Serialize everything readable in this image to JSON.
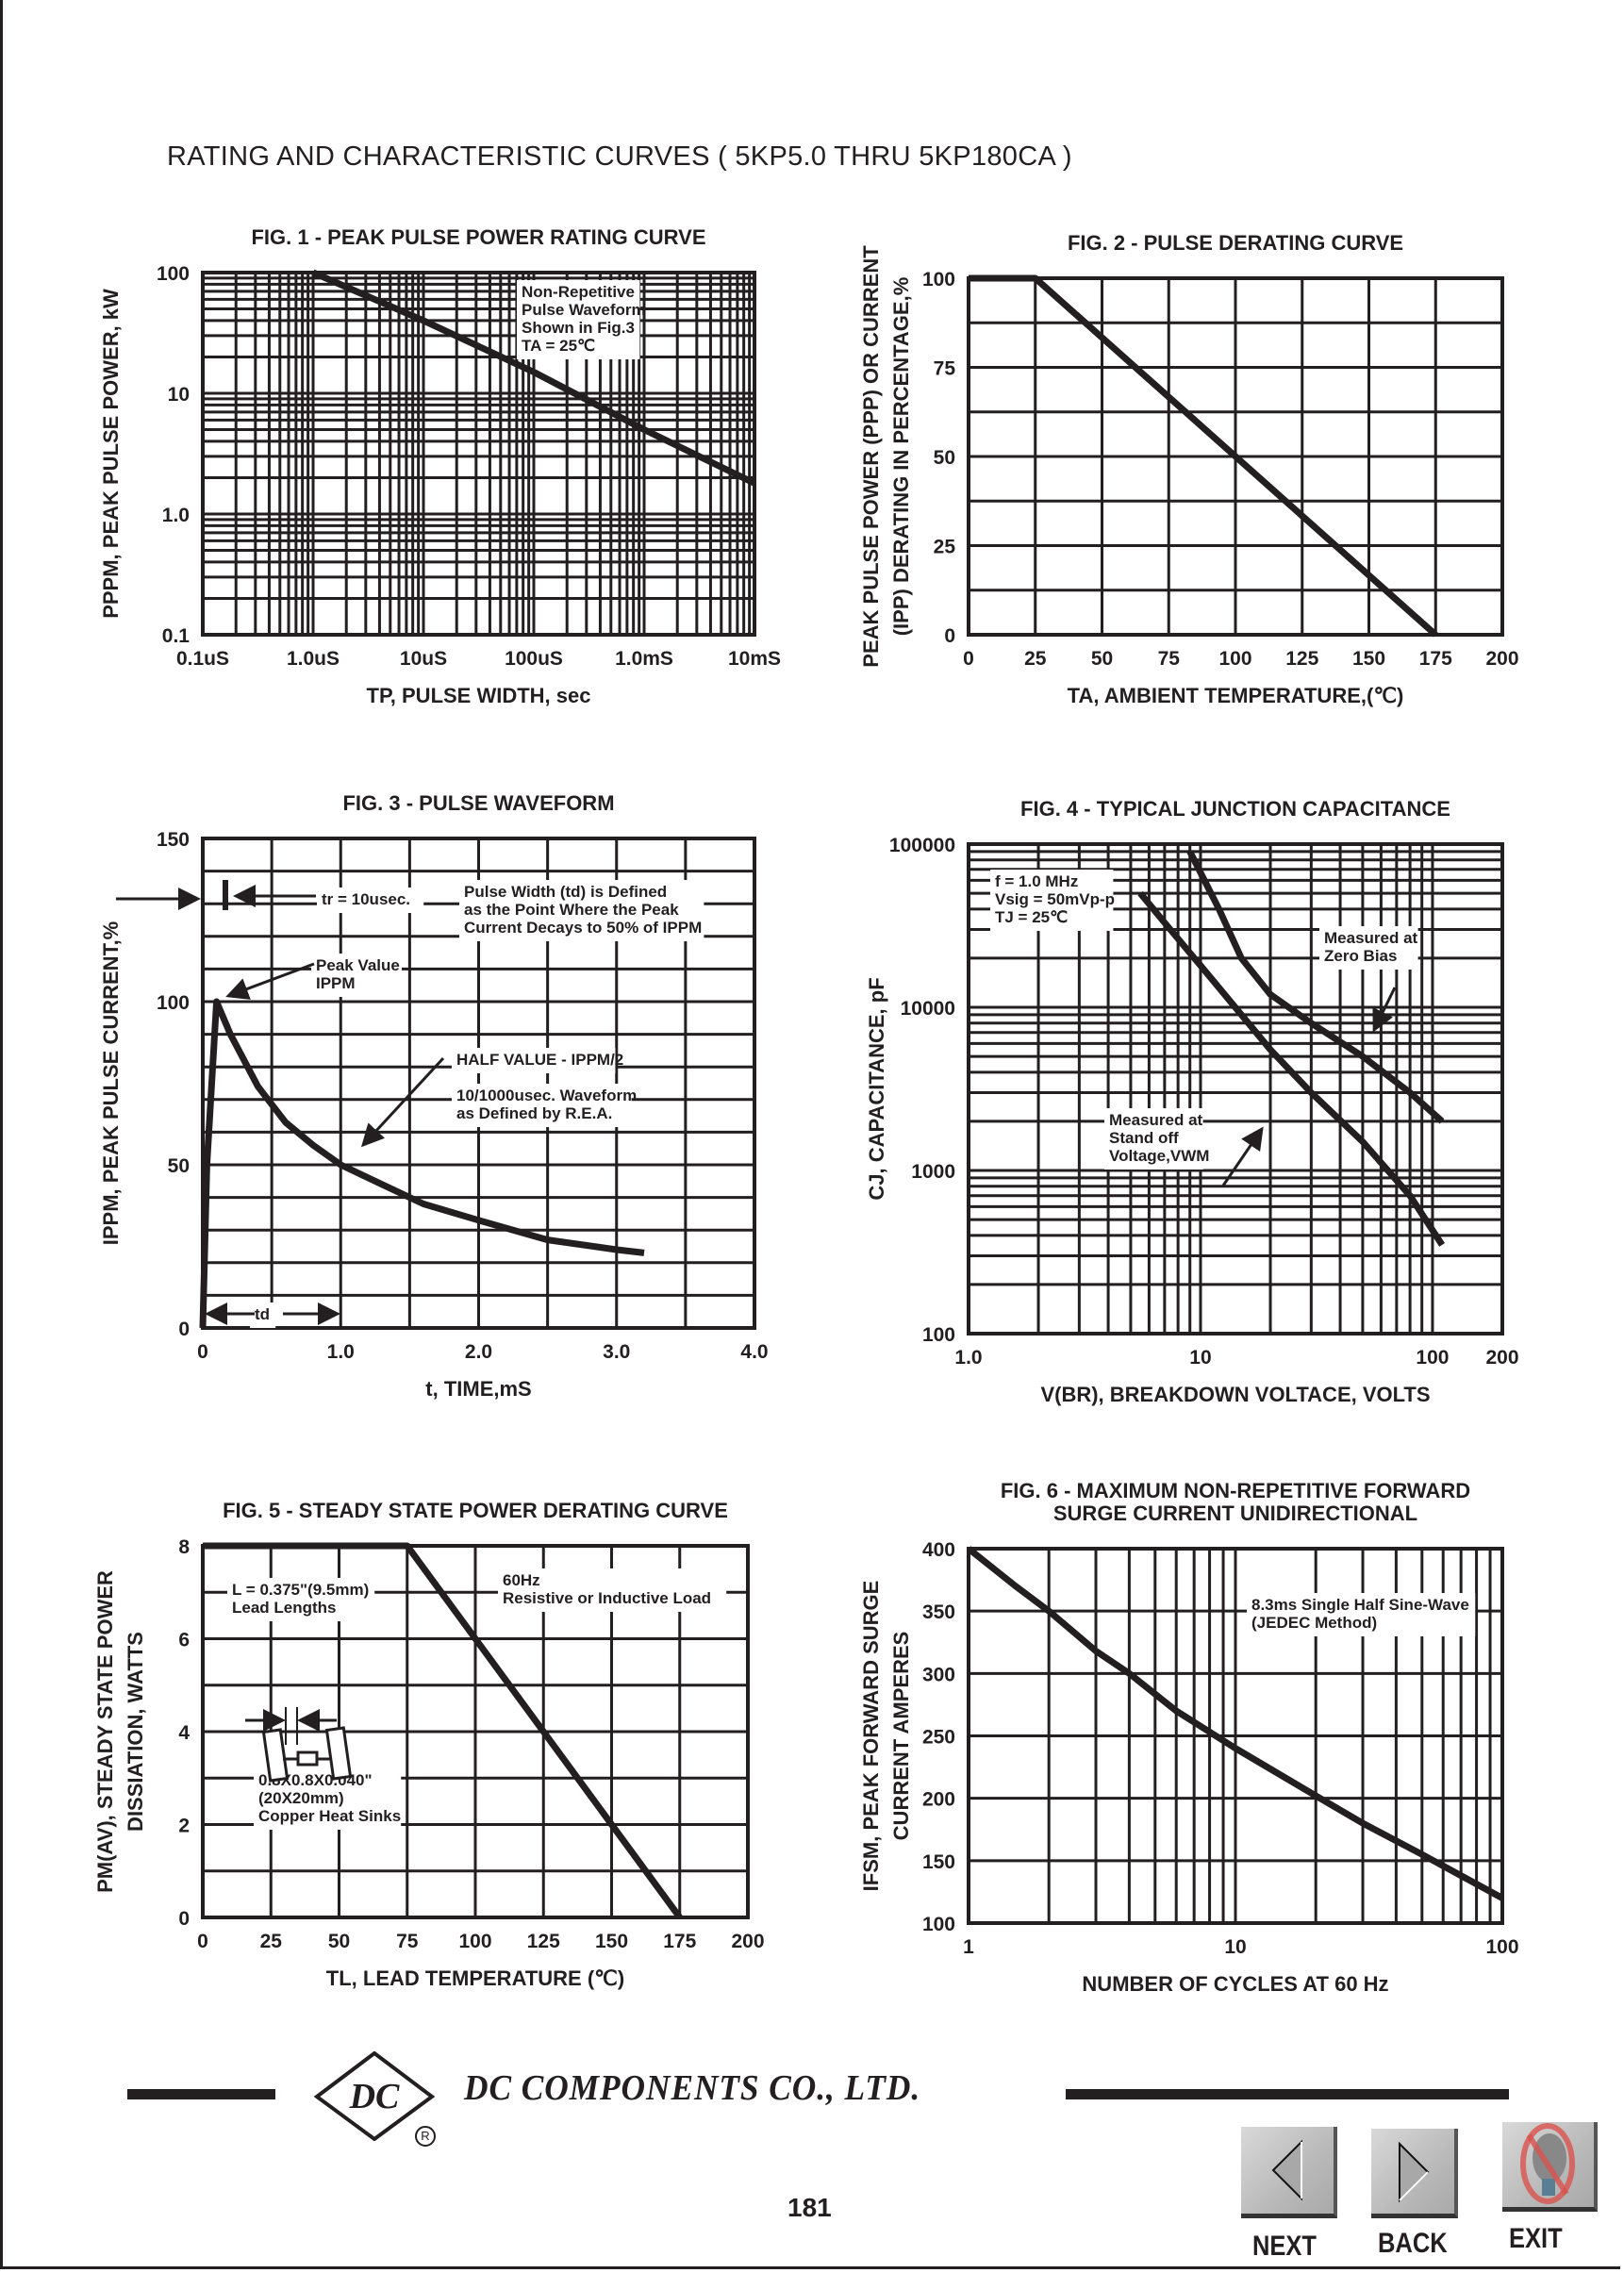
{
  "page_title": "RATING AND CHARACTERISTIC CURVES ( 5KP5.0 THRU 5KP180CA )",
  "footer": {
    "company": "DC COMPONENTS CO., LTD.",
    "logo_text": "DC",
    "registered_mark": "R",
    "page_number": "181",
    "nav": {
      "next": "NEXT",
      "back": "BACK",
      "exit": "EXIT"
    },
    "icons": {
      "next": "triangle-left-icon",
      "back": "triangle-right-icon",
      "exit": "no-entry-bulb-icon"
    },
    "colors": {
      "exit_sign": "#d9534f",
      "button": "#c0c0c0"
    }
  },
  "chart_data": [
    {
      "type": "line",
      "title": [
        "FIG. 1 - PEAK PULSE POWER RATING CURVE"
      ],
      "xlabel": "TP, PULSE WIDTH, sec",
      "ylabel": [
        "PPPM, PEAK PULSE POWER, kW"
      ],
      "xscale": "log",
      "yscale": "log",
      "xlim": [
        1e-07,
        0.01
      ],
      "ylim": [
        0.1,
        100
      ],
      "xticks": [
        {
          "v": 1e-07,
          "label": "0.1uS"
        },
        {
          "v": 1e-06,
          "label": "1.0uS"
        },
        {
          "v": 1e-05,
          "label": "10uS"
        },
        {
          "v": 0.0001,
          "label": "100uS"
        },
        {
          "v": 0.001,
          "label": "1.0mS"
        },
        {
          "v": 0.01,
          "label": "10mS"
        }
      ],
      "yticks": [
        {
          "v": 100,
          "label": "100"
        },
        {
          "v": 10,
          "label": "10"
        },
        {
          "v": 1,
          "label": "1.0"
        },
        {
          "v": 0.1,
          "label": "0.1"
        }
      ],
      "grid": true,
      "series": [
        {
          "points": [
            [
              1e-06,
              100
            ],
            [
              1e-05,
              40
            ],
            [
              0.0001,
              15
            ],
            [
              0.001,
              5
            ],
            [
              0.01,
              1.8
            ]
          ]
        }
      ],
      "annotations": [
        {
          "lines": [
            "Non-Repetitive",
            "Pulse Waveform",
            "Shown in Fig.3",
            "TA = 25℃"
          ]
        }
      ]
    },
    {
      "type": "line",
      "title": [
        "FIG. 2 - PULSE DERATING CURVE"
      ],
      "xlabel": "TA, AMBIENT TEMPERATURE,(℃)",
      "ylabel": [
        "PEAK PULSE POWER (PPP) OR CURRENT",
        "(IPP) DERATING IN PERCENTAGE,%"
      ],
      "xscale": "linear",
      "yscale": "linear",
      "xlim": [
        0,
        200
      ],
      "ylim": [
        0,
        100
      ],
      "xgrid_step": 25,
      "ygrid_step": 12.5,
      "xticks": [
        {
          "v": 0,
          "label": "0"
        },
        {
          "v": 25,
          "label": "25"
        },
        {
          "v": 50,
          "label": "50"
        },
        {
          "v": 75,
          "label": "75"
        },
        {
          "v": 100,
          "label": "100"
        },
        {
          "v": 125,
          "label": "125"
        },
        {
          "v": 150,
          "label": "150"
        },
        {
          "v": 175,
          "label": "175"
        },
        {
          "v": 200,
          "label": "200"
        }
      ],
      "yticks": [
        {
          "v": 0,
          "label": "0"
        },
        {
          "v": 25,
          "label": "25"
        },
        {
          "v": 50,
          "label": "50"
        },
        {
          "v": 75,
          "label": "75"
        },
        {
          "v": 100,
          "label": "100"
        }
      ],
      "grid": true,
      "series": [
        {
          "points": [
            [
              0,
              100
            ],
            [
              25,
              100
            ],
            [
              175,
              0
            ]
          ]
        }
      ],
      "annotations": []
    },
    {
      "type": "line",
      "title": [
        "FIG. 3 - PULSE WAVEFORM"
      ],
      "xlabel": "t, TIME,mS",
      "ylabel": [
        "IPPM, PEAK PULSE CURRENT,%"
      ],
      "xscale": "linear",
      "yscale": "linear",
      "xlim": [
        0,
        4
      ],
      "ylim": [
        0,
        150
      ],
      "xgrid_step": 0.5,
      "ygrid_step": 10,
      "xticks": [
        {
          "v": 0,
          "label": "0"
        },
        {
          "v": 1,
          "label": "1.0"
        },
        {
          "v": 2,
          "label": "2.0"
        },
        {
          "v": 3,
          "label": "3.0"
        },
        {
          "v": 4,
          "label": "4.0"
        }
      ],
      "yticks": [
        {
          "v": 0,
          "label": "0"
        },
        {
          "v": 50,
          "label": "50"
        },
        {
          "v": 100,
          "label": "100"
        },
        {
          "v": 150,
          "label": "150"
        }
      ],
      "grid": true,
      "series": [
        {
          "points": [
            [
              0,
              0
            ],
            [
              0.03,
              50
            ],
            [
              0.1,
              100
            ],
            [
              0.2,
              90
            ],
            [
              0.4,
              74
            ],
            [
              0.6,
              63
            ],
            [
              0.8,
              56
            ],
            [
              1.0,
              50
            ],
            [
              1.3,
              44
            ],
            [
              1.6,
              38
            ],
            [
              2.0,
              33
            ],
            [
              2.5,
              27
            ],
            [
              3.0,
              24
            ],
            [
              3.2,
              23
            ]
          ]
        }
      ],
      "annotations": [
        {
          "lines": [
            "tr = 10usec."
          ]
        },
        {
          "lines": [
            "Pulse Width (td) is Defined",
            "as the Point Where the Peak",
            "Current Decays to 50% of IPPM"
          ]
        },
        {
          "lines": [
            "Peak Value",
            "IPPM"
          ]
        },
        {
          "lines": [
            "HALF VALUE - IPPM/2"
          ]
        },
        {
          "lines": [
            "10/1000usec. Waveform",
            "as Defined by R.E.A."
          ]
        },
        {
          "lines": [
            "td"
          ]
        }
      ]
    },
    {
      "type": "line",
      "title": [
        "FIG. 4 - TYPICAL JUNCTION CAPACITANCE"
      ],
      "xlabel": "V(BR), BREAKDOWN VOLTACE, VOLTS",
      "ylabel": [
        "CJ, CAPACITANCE, pF"
      ],
      "xscale": "log",
      "yscale": "log",
      "xlim": [
        1,
        200
      ],
      "ylim": [
        100,
        100000
      ],
      "xticks": [
        {
          "v": 1,
          "label": "1.0"
        },
        {
          "v": 10,
          "label": "10"
        },
        {
          "v": 100,
          "label": "100"
        },
        {
          "v": 200,
          "label": "200"
        }
      ],
      "yticks": [
        {
          "v": 100000,
          "label": "100000"
        },
        {
          "v": 10000,
          "label": "10000"
        },
        {
          "v": 1000,
          "label": "1000"
        },
        {
          "v": 100,
          "label": "100"
        }
      ],
      "grid": true,
      "series": [
        {
          "points": [
            [
              9,
              90000
            ],
            [
              12,
              40000
            ],
            [
              15,
              20000
            ],
            [
              20,
              12000
            ],
            [
              30,
              8000
            ],
            [
              50,
              5000
            ],
            [
              80,
              3000
            ],
            [
              110,
              2000
            ]
          ]
        },
        {
          "points": [
            [
              5.5,
              50000
            ],
            [
              7,
              33000
            ],
            [
              10,
              18000
            ],
            [
              15,
              9000
            ],
            [
              20,
              5500
            ],
            [
              30,
              3000
            ],
            [
              50,
              1500
            ],
            [
              80,
              700
            ],
            [
              110,
              350
            ]
          ]
        }
      ],
      "annotations": [
        {
          "lines": [
            "f = 1.0 MHz",
            "Vsig = 50mVp-p",
            "TJ = 25℃"
          ]
        },
        {
          "lines": [
            "Measured at",
            "Zero Bias"
          ]
        },
        {
          "lines": [
            "Measured at",
            "Stand off",
            "Voltage,VWM"
          ]
        }
      ]
    },
    {
      "type": "line",
      "title": [
        "FIG. 5 - STEADY STATE POWER DERATING CURVE"
      ],
      "xlabel": "TL, LEAD TEMPERATURE (℃)",
      "ylabel": [
        "PM(AV), STEADY STATE POWER",
        "DISSIATION, WATTS"
      ],
      "xscale": "linear",
      "yscale": "linear",
      "xlim": [
        0,
        200
      ],
      "ylim": [
        0,
        8
      ],
      "xgrid_step": 25,
      "ygrid_step": 1,
      "xticks": [
        {
          "v": 0,
          "label": "0"
        },
        {
          "v": 25,
          "label": "25"
        },
        {
          "v": 50,
          "label": "50"
        },
        {
          "v": 75,
          "label": "75"
        },
        {
          "v": 100,
          "label": "100"
        },
        {
          "v": 125,
          "label": "125"
        },
        {
          "v": 150,
          "label": "150"
        },
        {
          "v": 175,
          "label": "175"
        },
        {
          "v": 200,
          "label": "200"
        }
      ],
      "yticks": [
        {
          "v": 0,
          "label": "0"
        },
        {
          "v": 2,
          "label": "2"
        },
        {
          "v": 4,
          "label": "4"
        },
        {
          "v": 6,
          "label": "6"
        },
        {
          "v": 8,
          "label": "8"
        }
      ],
      "grid": true,
      "series": [
        {
          "points": [
            [
              0,
              8
            ],
            [
              75,
              8
            ],
            [
              175,
              0
            ]
          ]
        }
      ],
      "annotations": [
        {
          "lines": [
            "L = 0.375\"(9.5mm)",
            "Lead Lengths"
          ]
        },
        {
          "lines": [
            "60Hz",
            "Resistive or Inductive Load"
          ]
        },
        {
          "lines": [
            "0.8X0.8X0.040\"",
            "(20X20mm)",
            "Copper Heat Sinks"
          ]
        }
      ]
    },
    {
      "type": "line",
      "title": [
        "FIG. 6 - MAXIMUM NON-REPETITIVE FORWARD",
        "SURGE CURRENT UNIDIRECTIONAL"
      ],
      "xlabel": "NUMBER OF CYCLES AT 60 Hz",
      "ylabel": [
        "IFSM, PEAK FORWARD SURGE",
        "CURRENT AMPERES"
      ],
      "xscale": "log",
      "yscale": "linear",
      "xlim": [
        1,
        100
      ],
      "ylim": [
        100,
        400
      ],
      "ygrid_step": 50,
      "xticks": [
        {
          "v": 1,
          "label": "1"
        },
        {
          "v": 10,
          "label": "10"
        },
        {
          "v": 100,
          "label": "100"
        }
      ],
      "yticks": [
        {
          "v": 100,
          "label": "100"
        },
        {
          "v": 150,
          "label": "150"
        },
        {
          "v": 200,
          "label": "200"
        },
        {
          "v": 250,
          "label": "250"
        },
        {
          "v": 300,
          "label": "300"
        },
        {
          "v": 350,
          "label": "350"
        },
        {
          "v": 400,
          "label": "400"
        }
      ],
      "grid": true,
      "series": [
        {
          "points": [
            [
              1,
              400
            ],
            [
              1.5,
              370
            ],
            [
              2,
              350
            ],
            [
              3,
              318
            ],
            [
              4,
              300
            ],
            [
              6,
              270
            ],
            [
              10,
              240
            ],
            [
              20,
              202
            ],
            [
              30,
              180
            ],
            [
              50,
              155
            ],
            [
              100,
              120
            ]
          ]
        }
      ],
      "annotations": [
        {
          "lines": [
            "8.3ms Single Half Sine-Wave",
            "(JEDEC Method)"
          ]
        }
      ]
    }
  ]
}
